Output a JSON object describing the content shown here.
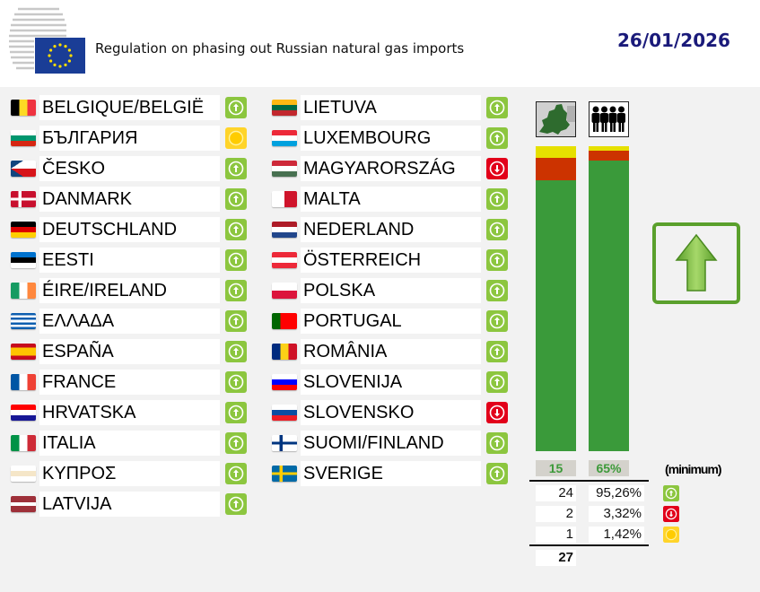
{
  "header": {
    "title": "Regulation on phasing out Russian natural gas imports",
    "date": "26/01/2026"
  },
  "vote_colors": {
    "yes": "#8cc63f",
    "no": "#e2001a",
    "abstain": "#ffd42a"
  },
  "bar_colors": {
    "yes": "#3a9a3a",
    "no": "#cc3300",
    "abstain": "#e6e000"
  },
  "countries": [
    {
      "name": "BELGIQUE/BELGIË",
      "vote": "yes",
      "flag": {
        "type": "v",
        "colors": [
          "#000000",
          "#fdda24",
          "#ef3340"
        ]
      }
    },
    {
      "name": "БЪЛГАРИЯ",
      "vote": "abstain",
      "flag": {
        "type": "h",
        "colors": [
          "#ffffff",
          "#00966e",
          "#d62612"
        ]
      }
    },
    {
      "name": "ČESKO",
      "vote": "yes",
      "flag": {
        "type": "cz",
        "colors": [
          "#ffffff",
          "#d7141a",
          "#11457e"
        ]
      }
    },
    {
      "name": "DANMARK",
      "vote": "yes",
      "flag": {
        "type": "cross",
        "colors": [
          "#c8102e",
          "#ffffff"
        ]
      }
    },
    {
      "name": "DEUTSCHLAND",
      "vote": "yes",
      "flag": {
        "type": "h",
        "colors": [
          "#000000",
          "#dd0000",
          "#ffce00"
        ]
      }
    },
    {
      "name": "EESTI",
      "vote": "yes",
      "flag": {
        "type": "h",
        "colors": [
          "#0072ce",
          "#000000",
          "#ffffff"
        ]
      }
    },
    {
      "name": "ÉIRE/IRELAND",
      "vote": "yes",
      "flag": {
        "type": "v",
        "colors": [
          "#169b62",
          "#ffffff",
          "#ff883e"
        ]
      }
    },
    {
      "name": "ΕΛΛΑΔΑ",
      "vote": "yes",
      "flag": {
        "type": "h",
        "colors": [
          "#0d5eaf",
          "#ffffff",
          "#0d5eaf",
          "#ffffff",
          "#0d5eaf",
          "#ffffff",
          "#0d5eaf"
        ]
      }
    },
    {
      "name": "ESPAÑA",
      "vote": "yes",
      "flag": {
        "type": "h",
        "colors": [
          "#c60b1e",
          "#ffc400",
          "#ffc400",
          "#c60b1e"
        ]
      }
    },
    {
      "name": "FRANCE",
      "vote": "yes",
      "flag": {
        "type": "v",
        "colors": [
          "#0055a4",
          "#ffffff",
          "#ef4135"
        ]
      }
    },
    {
      "name": "HRVATSKA",
      "vote": "yes",
      "flag": {
        "type": "h",
        "colors": [
          "#ff0000",
          "#ffffff",
          "#171796"
        ]
      }
    },
    {
      "name": "ITALIA",
      "vote": "yes",
      "flag": {
        "type": "v",
        "colors": [
          "#009246",
          "#ffffff",
          "#ce2b37"
        ]
      }
    },
    {
      "name": "ΚΥΠΡΟΣ",
      "vote": "yes",
      "flag": {
        "type": "h",
        "colors": [
          "#ffffff",
          "#f5e6c8",
          "#ffffff"
        ]
      }
    },
    {
      "name": "LATVIJA",
      "vote": "yes",
      "flag": {
        "type": "h",
        "colors": [
          "#9e3039",
          "#9e3039",
          "#ffffff",
          "#9e3039",
          "#9e3039"
        ]
      }
    },
    {
      "name": "LIETUVA",
      "vote": "yes",
      "flag": {
        "type": "h",
        "colors": [
          "#fdb913",
          "#006a44",
          "#c1272d"
        ]
      }
    },
    {
      "name": "LUXEMBOURG",
      "vote": "yes",
      "flag": {
        "type": "h",
        "colors": [
          "#ed2939",
          "#ffffff",
          "#00a1de"
        ]
      }
    },
    {
      "name": "MAGYARORSZÁG",
      "vote": "no",
      "flag": {
        "type": "h",
        "colors": [
          "#ce2939",
          "#ffffff",
          "#477050"
        ]
      }
    },
    {
      "name": "MALTA",
      "vote": "yes",
      "flag": {
        "type": "v",
        "colors": [
          "#ffffff",
          "#cf142b"
        ]
      }
    },
    {
      "name": "NEDERLAND",
      "vote": "yes",
      "flag": {
        "type": "h",
        "colors": [
          "#ae1c28",
          "#ffffff",
          "#21468b"
        ]
      }
    },
    {
      "name": "ÖSTERREICH",
      "vote": "yes",
      "flag": {
        "type": "h",
        "colors": [
          "#ed2939",
          "#ffffff",
          "#ed2939"
        ]
      }
    },
    {
      "name": "POLSKA",
      "vote": "yes",
      "flag": {
        "type": "h",
        "colors": [
          "#ffffff",
          "#dc143c"
        ]
      }
    },
    {
      "name": "PORTUGAL",
      "vote": "yes",
      "flag": {
        "type": "v",
        "colors": [
          "#006600",
          "#ff0000",
          "#ff0000"
        ]
      }
    },
    {
      "name": "ROMÂNIA",
      "vote": "yes",
      "flag": {
        "type": "v",
        "colors": [
          "#002b7f",
          "#fcd116",
          "#ce1126"
        ]
      }
    },
    {
      "name": "SLOVENIJA",
      "vote": "yes",
      "flag": {
        "type": "h",
        "colors": [
          "#ffffff",
          "#0000ff",
          "#ff0000"
        ]
      }
    },
    {
      "name": "SLOVENSKO",
      "vote": "no",
      "flag": {
        "type": "h",
        "colors": [
          "#ffffff",
          "#0b4ea2",
          "#ee1c25"
        ]
      }
    },
    {
      "name": "SUOMI/FINLAND",
      "vote": "yes",
      "flag": {
        "type": "cross",
        "colors": [
          "#ffffff",
          "#003580"
        ]
      }
    },
    {
      "name": "SVERIGE",
      "vote": "yes",
      "flag": {
        "type": "cross",
        "colors": [
          "#006aa7",
          "#fecc00"
        ]
      }
    }
  ],
  "summary": {
    "threshold_states": "15",
    "threshold_population": "65%",
    "minimum_label": "(minimum)",
    "rows": [
      {
        "vote": "yes",
        "count": "24",
        "population": "95,26%",
        "states_share": 24,
        "pop_share": 95.26
      },
      {
        "vote": "no",
        "count": "2",
        "population": "3,32%",
        "states_share": 2,
        "pop_share": 3.32
      },
      {
        "vote": "abstain",
        "count": "1",
        "population": "1,42%",
        "states_share": 1,
        "pop_share": 1.42
      }
    ],
    "total": "27"
  },
  "result": "adopted"
}
